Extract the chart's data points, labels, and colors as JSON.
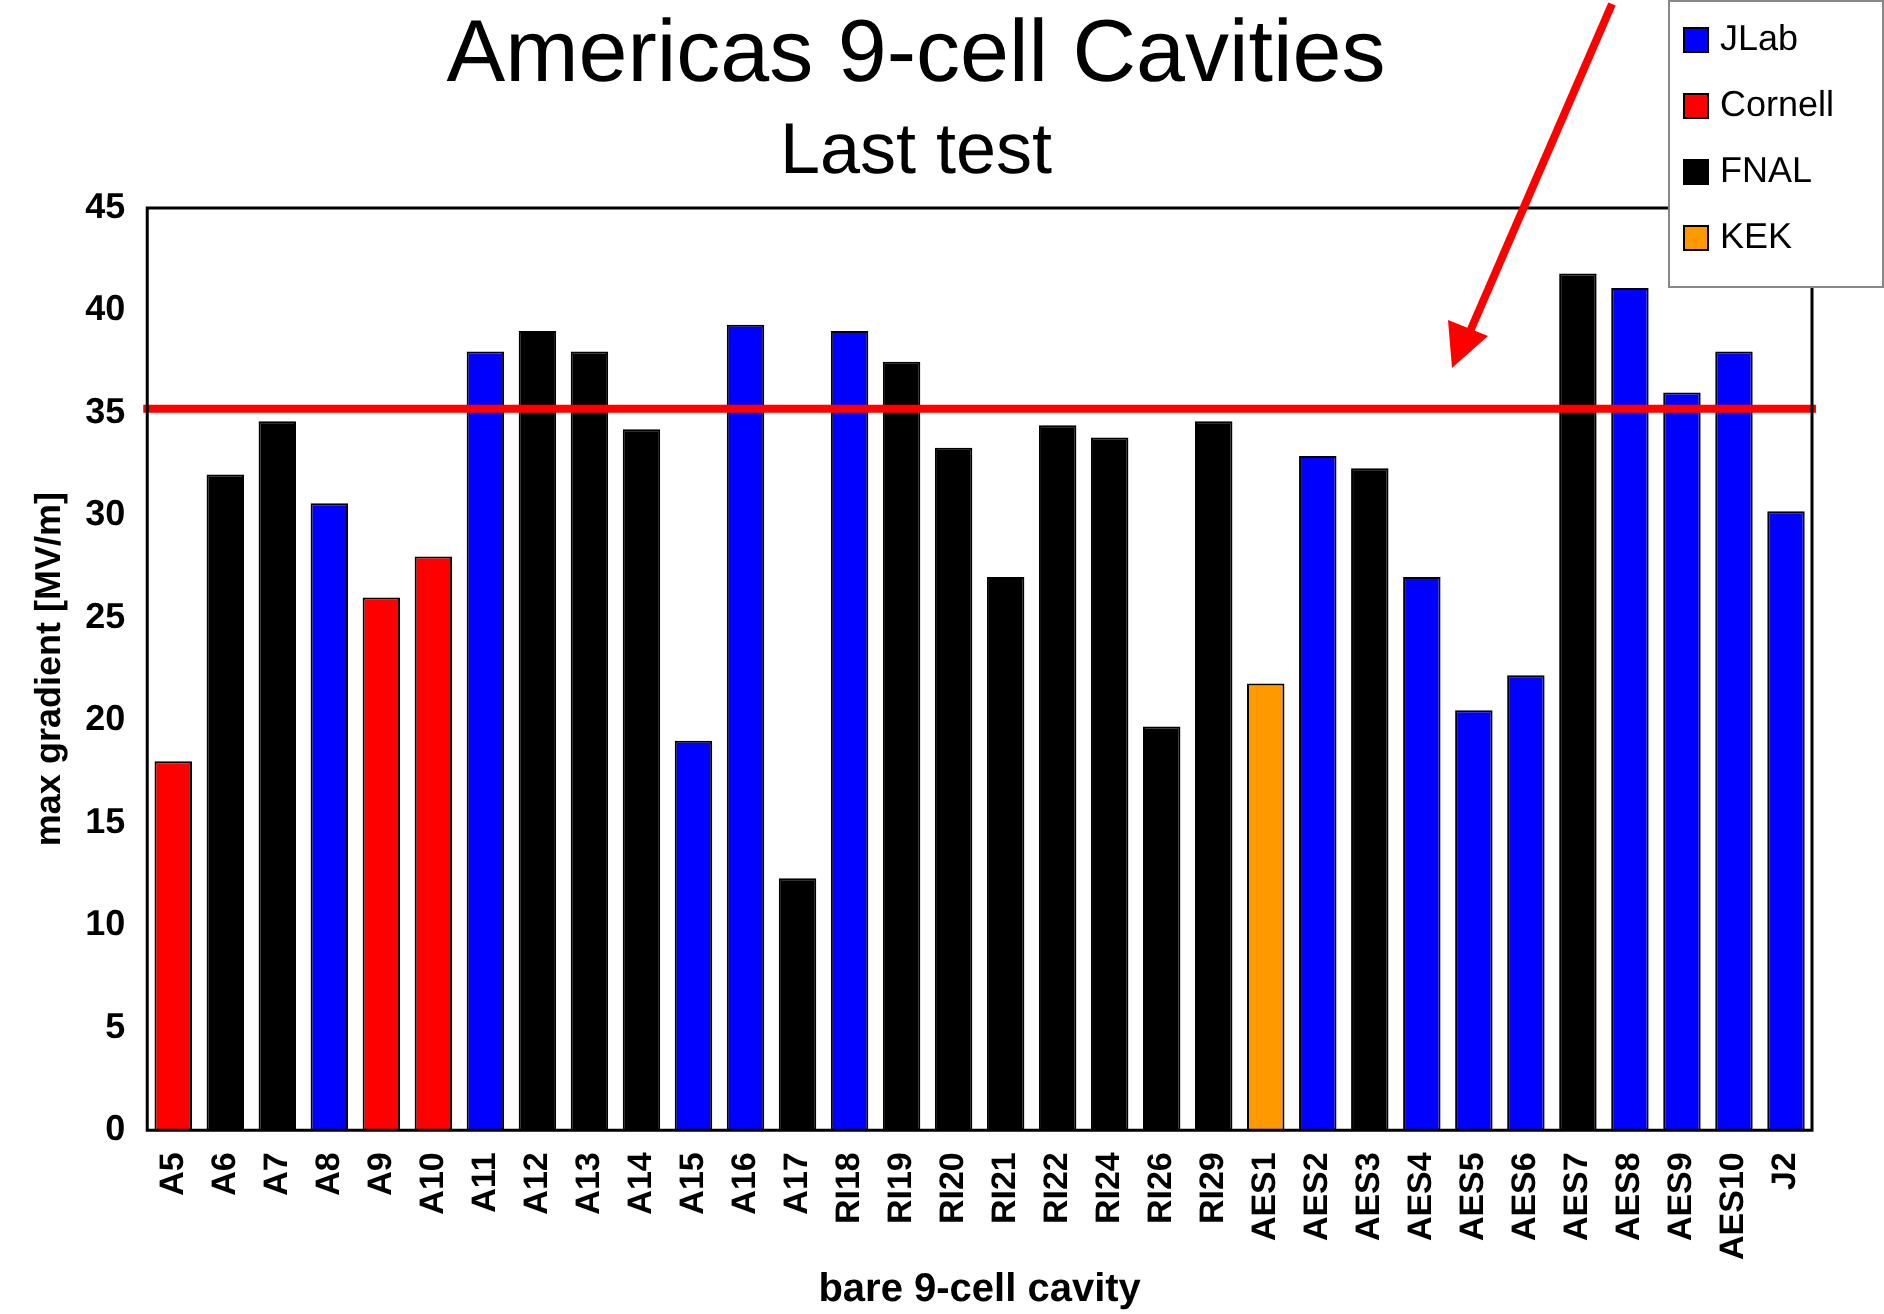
{
  "chart_data": {
    "type": "bar",
    "title": "Americas 9-cell Cavities",
    "subtitle": "Last test",
    "xlabel": "bare 9-cell cavity",
    "ylabel": "max gradient [MV/m]",
    "categories": [
      "A5",
      "A6",
      "A7",
      "A8",
      "A9",
      "A10",
      "A11",
      "A12",
      "A13",
      "A14",
      "A15",
      "A16",
      "A17",
      "RI18",
      "RI19",
      "RI20",
      "RI21",
      "RI22",
      "RI24",
      "RI26",
      "RI29",
      "AES1",
      "AES2",
      "AES3",
      "AES4",
      "AES5",
      "AES6",
      "AES7",
      "AES8",
      "AES9",
      "AES10",
      "J2"
    ],
    "series": [
      {
        "name": "JLab",
        "color": "#0000ff",
        "values": [
          null,
          null,
          null,
          30.6,
          null,
          null,
          38,
          null,
          null,
          null,
          19,
          39.3,
          null,
          39,
          null,
          null,
          null,
          null,
          null,
          null,
          null,
          null,
          32.9,
          null,
          27,
          20.5,
          22.2,
          null,
          41.1,
          36,
          38,
          30.2
        ]
      },
      {
        "name": "Cornell",
        "color": "#ff0000",
        "values": [
          18,
          null,
          null,
          null,
          26,
          28,
          null,
          null,
          null,
          null,
          null,
          null,
          null,
          null,
          null,
          null,
          null,
          null,
          null,
          null,
          null,
          null,
          null,
          null,
          null,
          null,
          null,
          null,
          null,
          null,
          null,
          null
        ]
      },
      {
        "name": "FNAL",
        "color": "#000000",
        "values": [
          null,
          32,
          34.6,
          null,
          null,
          null,
          null,
          39,
          38,
          34.2,
          null,
          null,
          12.3,
          null,
          37.5,
          33.3,
          27,
          34.4,
          33.8,
          19.7,
          34.6,
          null,
          null,
          32.3,
          null,
          null,
          null,
          41.8,
          null,
          null,
          null,
          null
        ]
      },
      {
        "name": "KEK",
        "color": "#ff9900",
        "values": [
          null,
          null,
          null,
          null,
          null,
          null,
          null,
          null,
          null,
          null,
          null,
          null,
          null,
          null,
          null,
          null,
          null,
          null,
          null,
          null,
          null,
          21.8,
          null,
          null,
          null,
          null,
          null,
          null,
          null,
          null,
          null,
          null
        ]
      }
    ],
    "ylim": [
      0,
      45
    ],
    "yticks": [
      0,
      5,
      10,
      15,
      20,
      25,
      30,
      35,
      40,
      45
    ],
    "grid": false,
    "legend": "top right",
    "ref_lines": [
      {
        "axis": "y",
        "value": 35.2,
        "color": "#ff0000"
      }
    ]
  }
}
